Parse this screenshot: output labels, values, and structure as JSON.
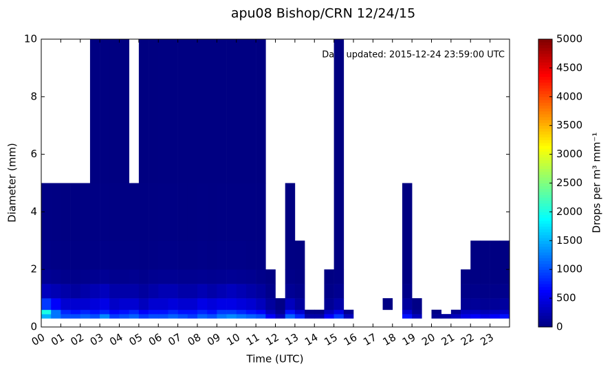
{
  "chart_data": {
    "type": "heatmap",
    "title": "apu08 Bishop/CRN 12/24/15",
    "xlabel": "Time (UTC)",
    "ylabel": "Diameter (mm)",
    "annotation": "Data updated:  2015-12-24 23:59:00 UTC",
    "colorbar_label": "Drops per m³  mm⁻¹",
    "colormap": "jet",
    "xlim": [
      0,
      24
    ],
    "ylim": [
      0,
      10
    ],
    "clim": [
      0,
      5000
    ],
    "xticks": [
      {
        "value": 0,
        "label": "00"
      },
      {
        "value": 1,
        "label": "01"
      },
      {
        "value": 2,
        "label": "02"
      },
      {
        "value": 3,
        "label": "03"
      },
      {
        "value": 4,
        "label": "04"
      },
      {
        "value": 5,
        "label": "05"
      },
      {
        "value": 6,
        "label": "06"
      },
      {
        "value": 7,
        "label": "07"
      },
      {
        "value": 8,
        "label": "08"
      },
      {
        "value": 9,
        "label": "09"
      },
      {
        "value": 10,
        "label": "10"
      },
      {
        "value": 11,
        "label": "11"
      },
      {
        "value": 12,
        "label": "12"
      },
      {
        "value": 13,
        "label": "13"
      },
      {
        "value": 14,
        "label": "14"
      },
      {
        "value": 15,
        "label": "15"
      },
      {
        "value": 16,
        "label": "16"
      },
      {
        "value": 17,
        "label": "17"
      },
      {
        "value": 18,
        "label": "18"
      },
      {
        "value": 19,
        "label": "19"
      },
      {
        "value": 20,
        "label": "20"
      },
      {
        "value": 21,
        "label": "21"
      },
      {
        "value": 22,
        "label": "22"
      },
      {
        "value": 23,
        "label": "23"
      }
    ],
    "yticks": [
      0,
      2,
      4,
      6,
      8,
      10
    ],
    "cticks": [
      0,
      500,
      1000,
      1500,
      2000,
      2500,
      3000,
      3500,
      4000,
      4500,
      5000
    ],
    "xbins": [
      0,
      0.5,
      1,
      1.5,
      2,
      2.5,
      3,
      3.5,
      4,
      4.5,
      5,
      5.5,
      6,
      6.5,
      7,
      7.5,
      8,
      8.5,
      9,
      9.5,
      10,
      10.5,
      11,
      11.5,
      12,
      12.5,
      13,
      13.5,
      14,
      14.5,
      15,
      15.5,
      16,
      16.5,
      17,
      17.5,
      18,
      18.5,
      19,
      19.5,
      20,
      20.5,
      21,
      21.5,
      22,
      22.5,
      23,
      23.5,
      24
    ],
    "ybins": [
      0.3,
      0.45,
      0.6,
      1,
      1.5,
      2,
      3,
      5,
      10
    ],
    "values": [
      [
        1500,
        2000,
        900,
        300,
        100,
        40,
        20,
        null
      ],
      [
        1200,
        1200,
        600,
        250,
        80,
        30,
        15,
        null
      ],
      [
        1000,
        800,
        400,
        200,
        60,
        25,
        10,
        null
      ],
      [
        1000,
        700,
        400,
        150,
        50,
        20,
        10,
        null
      ],
      [
        1100,
        800,
        400,
        200,
        60,
        25,
        15,
        null
      ],
      [
        1000,
        700,
        450,
        250,
        80,
        30,
        20,
        10
      ],
      [
        1300,
        800,
        500,
        300,
        100,
        40,
        20,
        10
      ],
      [
        900,
        600,
        350,
        200,
        70,
        30,
        15,
        8
      ],
      [
        1000,
        700,
        400,
        200,
        70,
        30,
        15,
        8
      ],
      [
        1100,
        800,
        400,
        200,
        80,
        30,
        15,
        null
      ],
      [
        900,
        600,
        300,
        150,
        60,
        25,
        15,
        8
      ],
      [
        1000,
        700,
        400,
        200,
        80,
        30,
        15,
        8
      ],
      [
        1000,
        700,
        400,
        250,
        90,
        40,
        20,
        10
      ],
      [
        1100,
        800,
        450,
        250,
        90,
        40,
        20,
        10
      ],
      [
        1000,
        700,
        400,
        200,
        80,
        30,
        15,
        10
      ],
      [
        900,
        700,
        400,
        200,
        80,
        30,
        15,
        10
      ],
      [
        1100,
        800,
        500,
        250,
        90,
        40,
        20,
        10
      ],
      [
        1000,
        700,
        450,
        200,
        80,
        30,
        15,
        10
      ],
      [
        1200,
        900,
        500,
        250,
        90,
        40,
        20,
        10
      ],
      [
        1300,
        900,
        500,
        300,
        100,
        40,
        20,
        10
      ],
      [
        1200,
        800,
        450,
        250,
        90,
        40,
        20,
        10
      ],
      [
        1100,
        700,
        400,
        200,
        80,
        30,
        20,
        10
      ],
      [
        1000,
        600,
        300,
        150,
        50,
        25,
        15,
        8
      ],
      [
        600,
        300,
        150,
        60,
        20,
        null,
        null,
        null
      ],
      [
        300,
        100,
        30,
        null,
        null,
        null,
        null,
        null
      ],
      [
        1100,
        700,
        300,
        100,
        40,
        15,
        8,
        null
      ],
      [
        800,
        400,
        150,
        60,
        20,
        10,
        null,
        null
      ],
      [
        200,
        50,
        null,
        null,
        null,
        null,
        null,
        null
      ],
      [
        200,
        40,
        null,
        null,
        null,
        null,
        null,
        null
      ],
      [
        600,
        300,
        100,
        40,
        15,
        null,
        null,
        null
      ],
      [
        900,
        500,
        200,
        80,
        30,
        15,
        10,
        8
      ],
      [
        300,
        80,
        null,
        null,
        null,
        null,
        null,
        null
      ],
      [
        null,
        null,
        null,
        null,
        null,
        null,
        null,
        null
      ],
      [
        null,
        null,
        null,
        null,
        null,
        null,
        null,
        null
      ],
      [
        null,
        null,
        null,
        null,
        null,
        null,
        null,
        null
      ],
      [
        null,
        null,
        20,
        null,
        null,
        null,
        null,
        null
      ],
      [
        null,
        null,
        null,
        null,
        null,
        null,
        null,
        null
      ],
      [
        700,
        400,
        150,
        50,
        15,
        10,
        8,
        null
      ],
      [
        300,
        100,
        30,
        null,
        null,
        null,
        null,
        null
      ],
      [
        null,
        null,
        null,
        null,
        null,
        null,
        null,
        null
      ],
      [
        100,
        30,
        null,
        null,
        null,
        null,
        null,
        null
      ],
      [
        150,
        null,
        null,
        null,
        null,
        null,
        null,
        null
      ],
      [
        300,
        80,
        null,
        null,
        null,
        null,
        null,
        null
      ],
      [
        500,
        300,
        100,
        40,
        15,
        null,
        null,
        null
      ],
      [
        600,
        300,
        120,
        50,
        15,
        10,
        null,
        null
      ],
      [
        500,
        250,
        100,
        40,
        15,
        10,
        null,
        null
      ],
      [
        600,
        300,
        120,
        50,
        15,
        10,
        null,
        null
      ],
      [
        700,
        350,
        150,
        60,
        20,
        10,
        null,
        null
      ]
    ]
  }
}
